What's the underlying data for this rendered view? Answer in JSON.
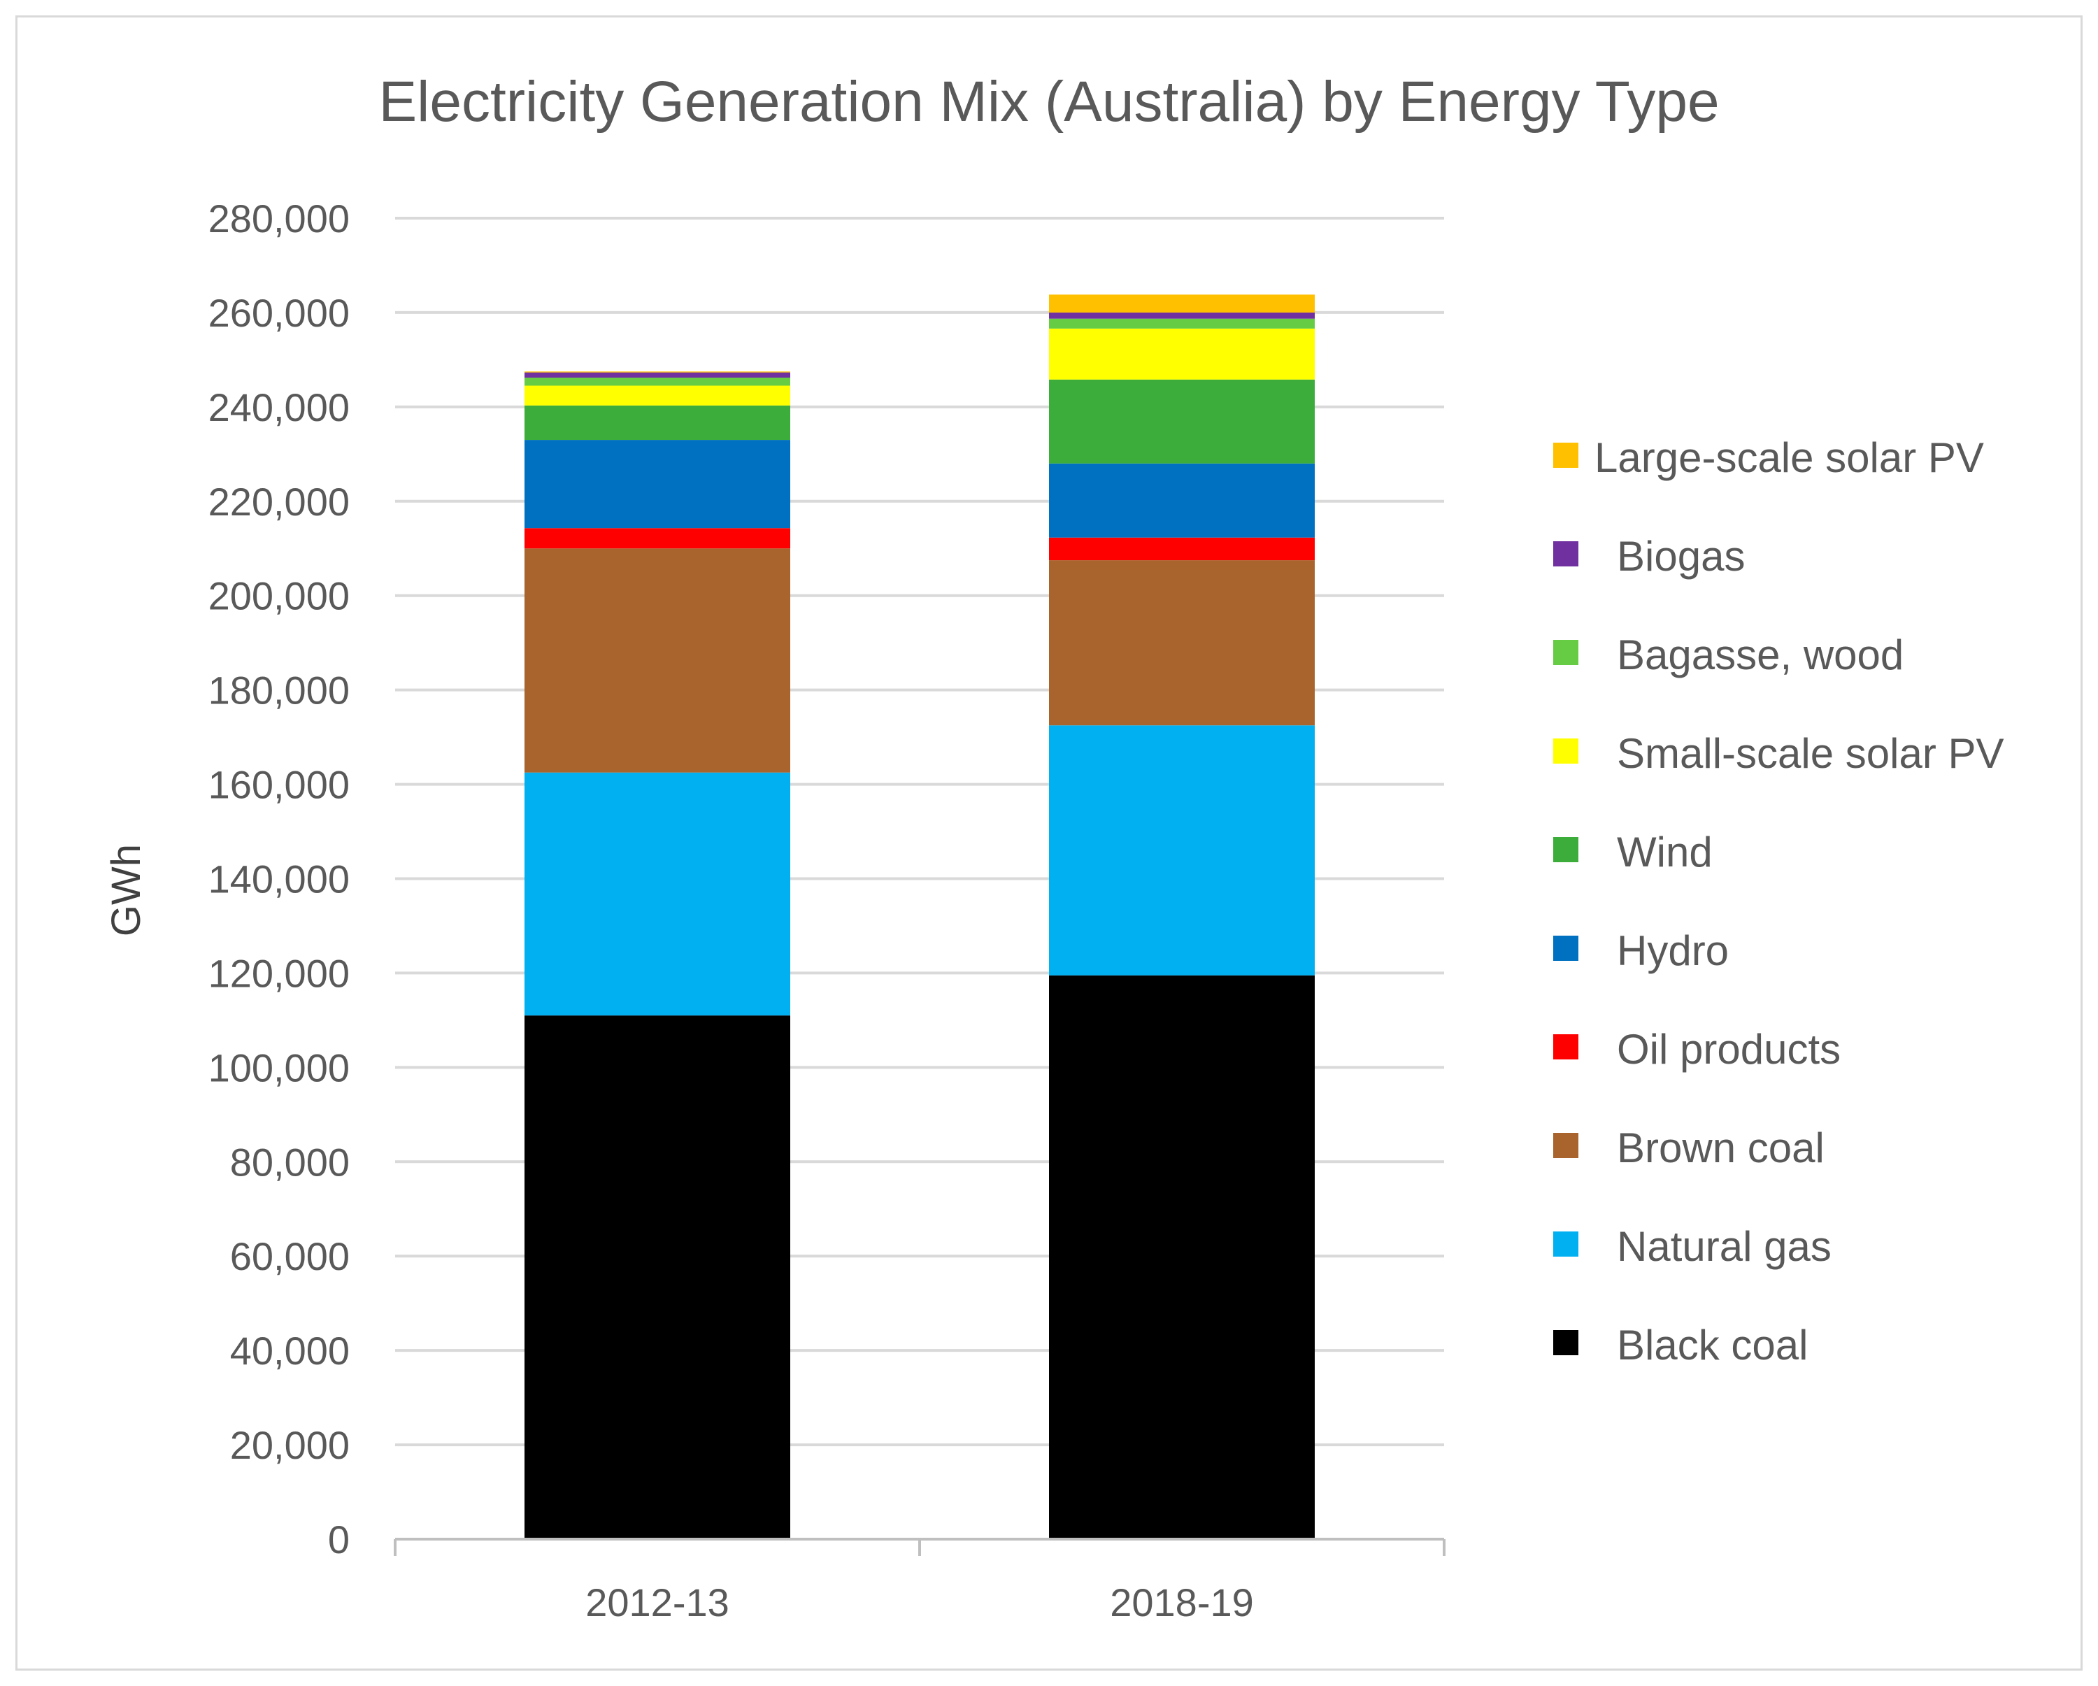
{
  "chart_data": {
    "type": "bar",
    "stacked": true,
    "title": "Electricity Generation Mix (Australia) by Energy Type",
    "xlabel": "",
    "ylabel": "GWh",
    "ylim": [
      0,
      280000
    ],
    "y_tick_step": 20000,
    "y_tick_labels": [
      "0",
      "20,000",
      "40,000",
      "60,000",
      "80,000",
      "100,000",
      "120,000",
      "140,000",
      "160,000",
      "180,000",
      "200,000",
      "220,000",
      "240,000",
      "260,000",
      "280,000"
    ],
    "grid": true,
    "legend_position": "right",
    "categories": [
      "2012-13",
      "2018-19"
    ],
    "series": [
      {
        "name": "Black coal",
        "color": "#000000",
        "values": [
          111000,
          119500
        ]
      },
      {
        "name": "Natural gas",
        "color": "#00b0f0",
        "values": [
          51500,
          53000
        ]
      },
      {
        "name": "Brown coal",
        "color": "#a9632c",
        "values": [
          47500,
          35000
        ]
      },
      {
        "name": "Oil products",
        "color": "#ff0000",
        "values": [
          4300,
          4800
        ]
      },
      {
        "name": "Hydro",
        "color": "#0070c0",
        "values": [
          18700,
          15700
        ]
      },
      {
        "name": "Wind",
        "color": "#3cad3a",
        "values": [
          7300,
          17800
        ]
      },
      {
        "name": "Small-scale solar PV",
        "color": "#ffff00",
        "values": [
          4200,
          10800
        ]
      },
      {
        "name": "Bagasse, wood",
        "color": "#66cc44",
        "values": [
          1700,
          2100
        ]
      },
      {
        "name": "Biogas",
        "color": "#7030a0",
        "values": [
          1100,
          1300
        ]
      },
      {
        "name": "Large-scale solar PV",
        "color": "#ffc000",
        "values": [
          200,
          3800
        ]
      }
    ],
    "legend_order": [
      "Large-scale solar PV",
      "Biogas",
      "Bagasse, wood",
      "Small-scale solar PV",
      "Wind",
      "Hydro",
      "Oil products",
      "Brown coal",
      "Natural gas",
      "Black coal"
    ]
  }
}
